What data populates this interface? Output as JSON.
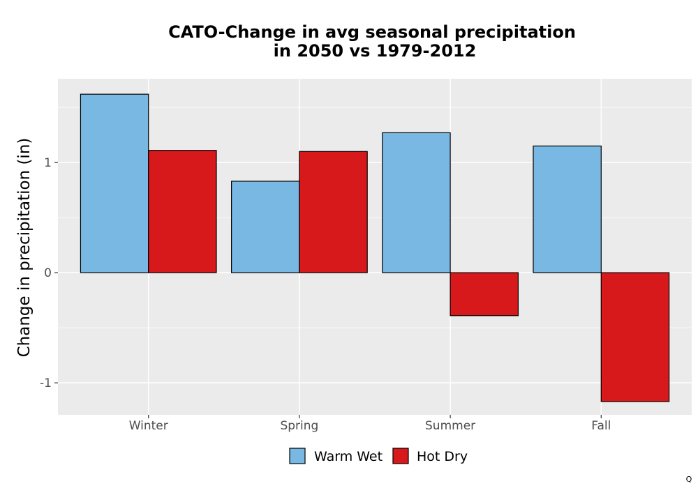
{
  "chart_data": {
    "type": "bar",
    "title_lines": [
      "CATO-Change in avg seasonal precipitation",
      "in 2050 vs 1979-2012"
    ],
    "xlabel": "",
    "ylabel": "Change in precipitation (in)",
    "categories": [
      "Winter",
      "Spring",
      "Summer",
      "Fall"
    ],
    "series": [
      {
        "name": "Warm Wet",
        "color": "#78b8e2",
        "values": [
          1.62,
          0.83,
          1.27,
          1.15
        ]
      },
      {
        "name": "Hot Dry",
        "color": "#d7191c",
        "values": [
          1.11,
          1.1,
          -0.39,
          -1.17
        ]
      }
    ],
    "ylim": [
      -1.29,
      1.76
    ],
    "yticks": [
      -1,
      0,
      1
    ],
    "ytick_labels": [
      "-1",
      "0",
      "1"
    ],
    "grid": true,
    "legend_position": "bottom",
    "background": "#ebebeb"
  },
  "corner_mark": "Q"
}
